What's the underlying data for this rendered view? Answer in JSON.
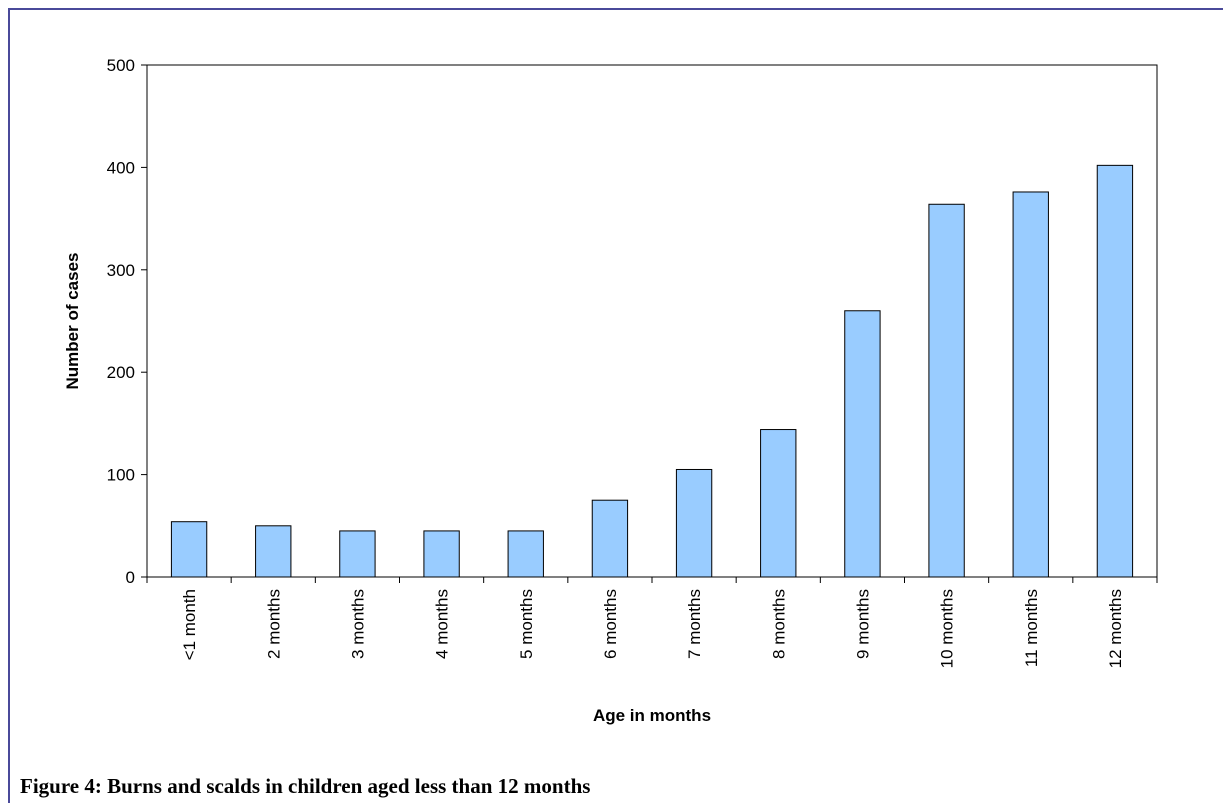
{
  "chart_data": {
    "type": "bar",
    "categories": [
      "<1 month",
      "2 months",
      "3 months",
      "4 months",
      "5 months",
      "6 months",
      "7 months",
      "8 months",
      "9 months",
      "10 months",
      "11 months",
      "12 months"
    ],
    "values": [
      54,
      50,
      45,
      45,
      45,
      75,
      105,
      144,
      260,
      364,
      376,
      402
    ],
    "yticks": [
      0,
      100,
      200,
      300,
      400,
      500
    ],
    "ylim": [
      0,
      500
    ],
    "xlabel": "Age in months",
    "ylabel": "Number of cases",
    "grid": false,
    "bar_color": "#99ccff"
  },
  "caption": "Figure 4: Burns and scalds in children aged less than 12 months"
}
